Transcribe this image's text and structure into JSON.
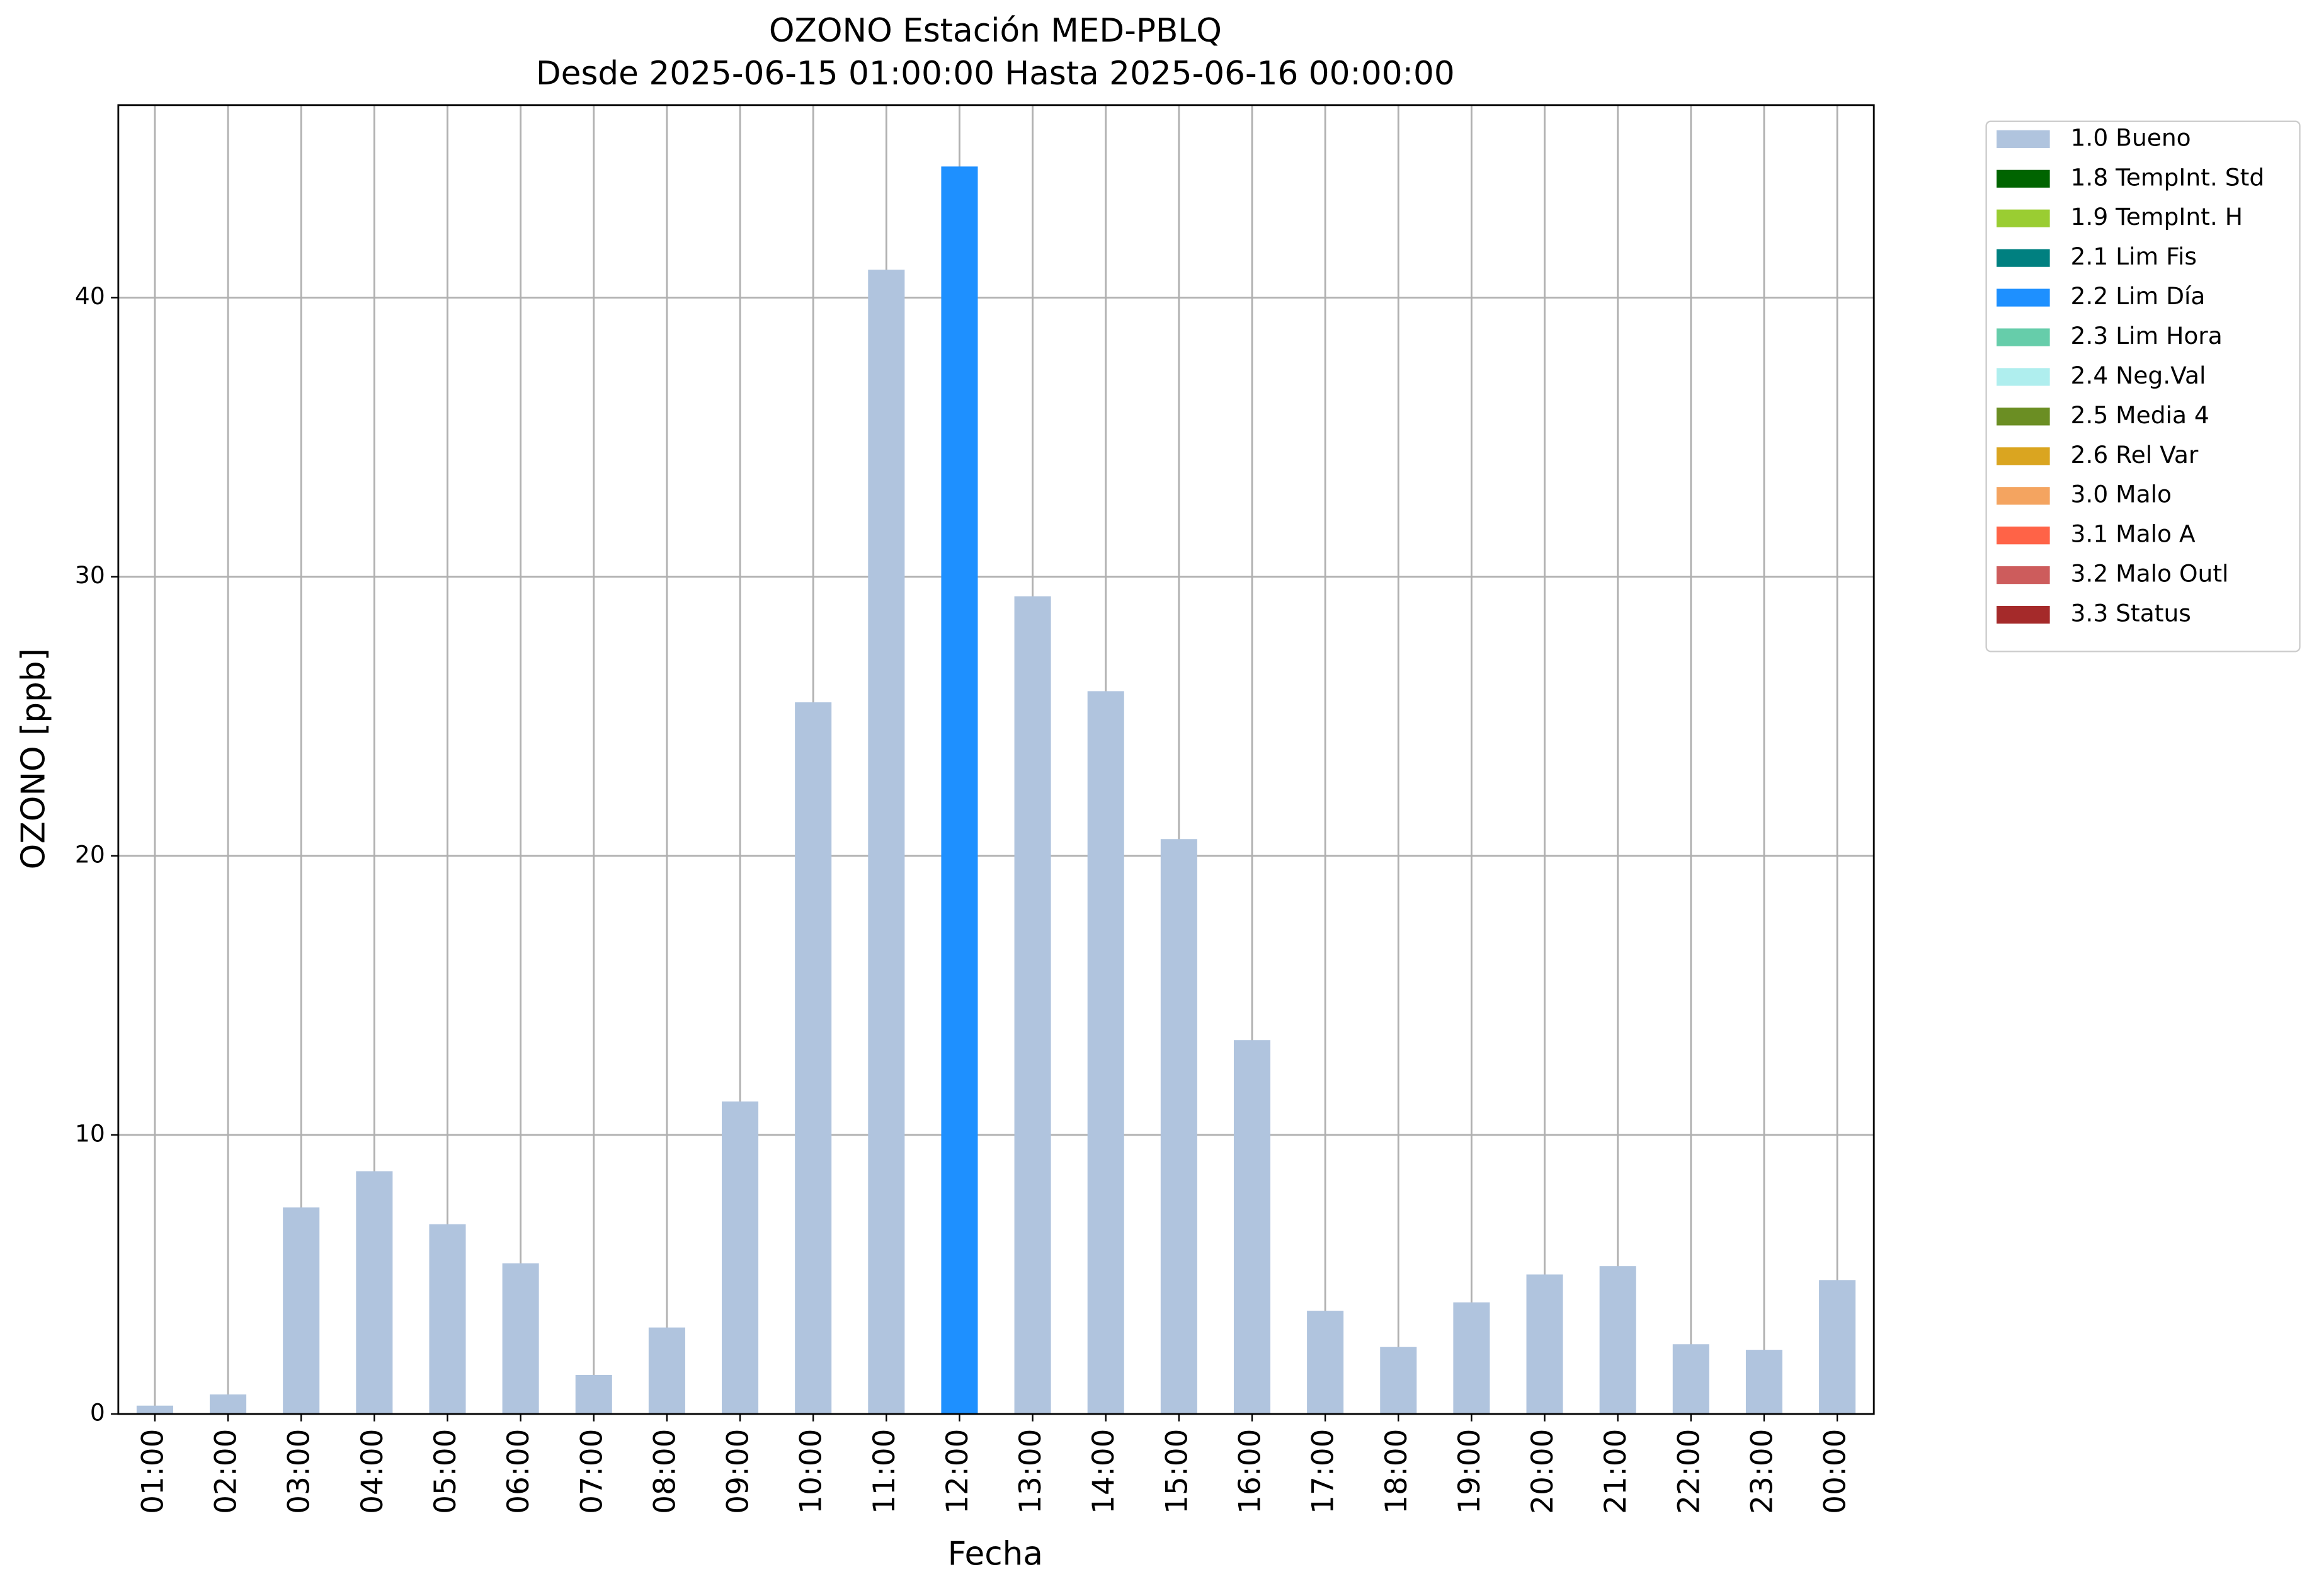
{
  "chart_data": {
    "type": "bar",
    "stacked": true,
    "title": "OZONO Estación MED-PBLQ",
    "subtitle": "Desde 2025-06-15 01:00:00 Hasta 2025-06-16 00:00:00",
    "x_label": "Fecha",
    "y_label": "OZONO [ppb]",
    "categories": [
      "01:00",
      "02:00",
      "03:00",
      "04:00",
      "05:00",
      "06:00",
      "07:00",
      "08:00",
      "09:00",
      "10:00",
      "11:00",
      "12:00",
      "13:00",
      "14:00",
      "15:00",
      "16:00",
      "17:00",
      "18:00",
      "19:00",
      "20:00",
      "21:00",
      "22:00",
      "23:00",
      "00:00"
    ],
    "series": [
      {
        "name": "1.0 Bueno",
        "color": "#b0c4de",
        "values": [
          0.3,
          0.7,
          7.4,
          8.7,
          6.8,
          5.4,
          1.4,
          3.1,
          11.2,
          25.5,
          41.0,
          null,
          29.3,
          25.9,
          20.6,
          13.4,
          3.7,
          2.4,
          4.0,
          5.0,
          5.3,
          2.5,
          2.3,
          4.8
        ]
      },
      {
        "name": "1.8 TempInt. Std",
        "color": "#006400",
        "values": [
          null,
          null,
          null,
          null,
          null,
          null,
          null,
          null,
          null,
          null,
          null,
          null,
          null,
          null,
          null,
          null,
          null,
          null,
          null,
          null,
          null,
          null,
          null,
          null
        ]
      },
      {
        "name": "1.9 TempInt. H",
        "color": "#9acd32",
        "values": [
          null,
          null,
          null,
          null,
          null,
          null,
          null,
          null,
          null,
          null,
          null,
          null,
          null,
          null,
          null,
          null,
          null,
          null,
          null,
          null,
          null,
          null,
          null,
          null
        ]
      },
      {
        "name": "2.1 Lim Fis",
        "color": "#008080",
        "values": [
          null,
          null,
          null,
          null,
          null,
          null,
          null,
          null,
          null,
          null,
          null,
          null,
          null,
          null,
          null,
          null,
          null,
          null,
          null,
          null,
          null,
          null,
          null,
          null
        ]
      },
      {
        "name": "2.2 Lim Día",
        "color": "#1e90ff",
        "values": [
          null,
          null,
          null,
          null,
          null,
          null,
          null,
          null,
          null,
          null,
          null,
          44.7,
          null,
          null,
          null,
          null,
          null,
          null,
          null,
          null,
          null,
          null,
          null,
          null
        ]
      },
      {
        "name": "2.3 Lim Hora",
        "color": "#66cdaa",
        "values": [
          null,
          null,
          null,
          null,
          null,
          null,
          null,
          null,
          null,
          null,
          null,
          null,
          null,
          null,
          null,
          null,
          null,
          null,
          null,
          null,
          null,
          null,
          null,
          null
        ]
      },
      {
        "name": "2.4 Neg.Val",
        "color": "#afeeee",
        "values": [
          null,
          null,
          null,
          null,
          null,
          null,
          null,
          null,
          null,
          null,
          null,
          null,
          null,
          null,
          null,
          null,
          null,
          null,
          null,
          null,
          null,
          null,
          null,
          null
        ]
      },
      {
        "name": "2.5 Media 4",
        "color": "#6b8e23",
        "values": [
          null,
          null,
          null,
          null,
          null,
          null,
          null,
          null,
          null,
          null,
          null,
          null,
          null,
          null,
          null,
          null,
          null,
          null,
          null,
          null,
          null,
          null,
          null,
          null
        ]
      },
      {
        "name": "2.6 Rel Var",
        "color": "#daa520",
        "values": [
          null,
          null,
          null,
          null,
          null,
          null,
          null,
          null,
          null,
          null,
          null,
          null,
          null,
          null,
          null,
          null,
          null,
          null,
          null,
          null,
          null,
          null,
          null,
          null
        ]
      },
      {
        "name": "3.0 Malo",
        "color": "#f4a460",
        "values": [
          null,
          null,
          null,
          null,
          null,
          null,
          null,
          null,
          null,
          null,
          null,
          null,
          null,
          null,
          null,
          null,
          null,
          null,
          null,
          null,
          null,
          null,
          null,
          null
        ]
      },
      {
        "name": "3.1 Malo A",
        "color": "#ff6347",
        "values": [
          null,
          null,
          null,
          null,
          null,
          null,
          null,
          null,
          null,
          null,
          null,
          null,
          null,
          null,
          null,
          null,
          null,
          null,
          null,
          null,
          null,
          null,
          null,
          null
        ]
      },
      {
        "name": "3.2 Malo Outl",
        "color": "#cd5c5c",
        "values": [
          null,
          null,
          null,
          null,
          null,
          null,
          null,
          null,
          null,
          null,
          null,
          null,
          null,
          null,
          null,
          null,
          null,
          null,
          null,
          null,
          null,
          null,
          null,
          null
        ]
      },
      {
        "name": "3.3 Status",
        "color": "#a52a2a",
        "values": [
          null,
          null,
          null,
          null,
          null,
          null,
          null,
          null,
          null,
          null,
          null,
          null,
          null,
          null,
          null,
          null,
          null,
          null,
          null,
          null,
          null,
          null,
          null,
          null
        ]
      }
    ],
    "ylim": [
      0,
      46.9
    ],
    "yticks": [
      0,
      10,
      20,
      30,
      40
    ],
    "grid": true,
    "legend": "outside-right"
  }
}
